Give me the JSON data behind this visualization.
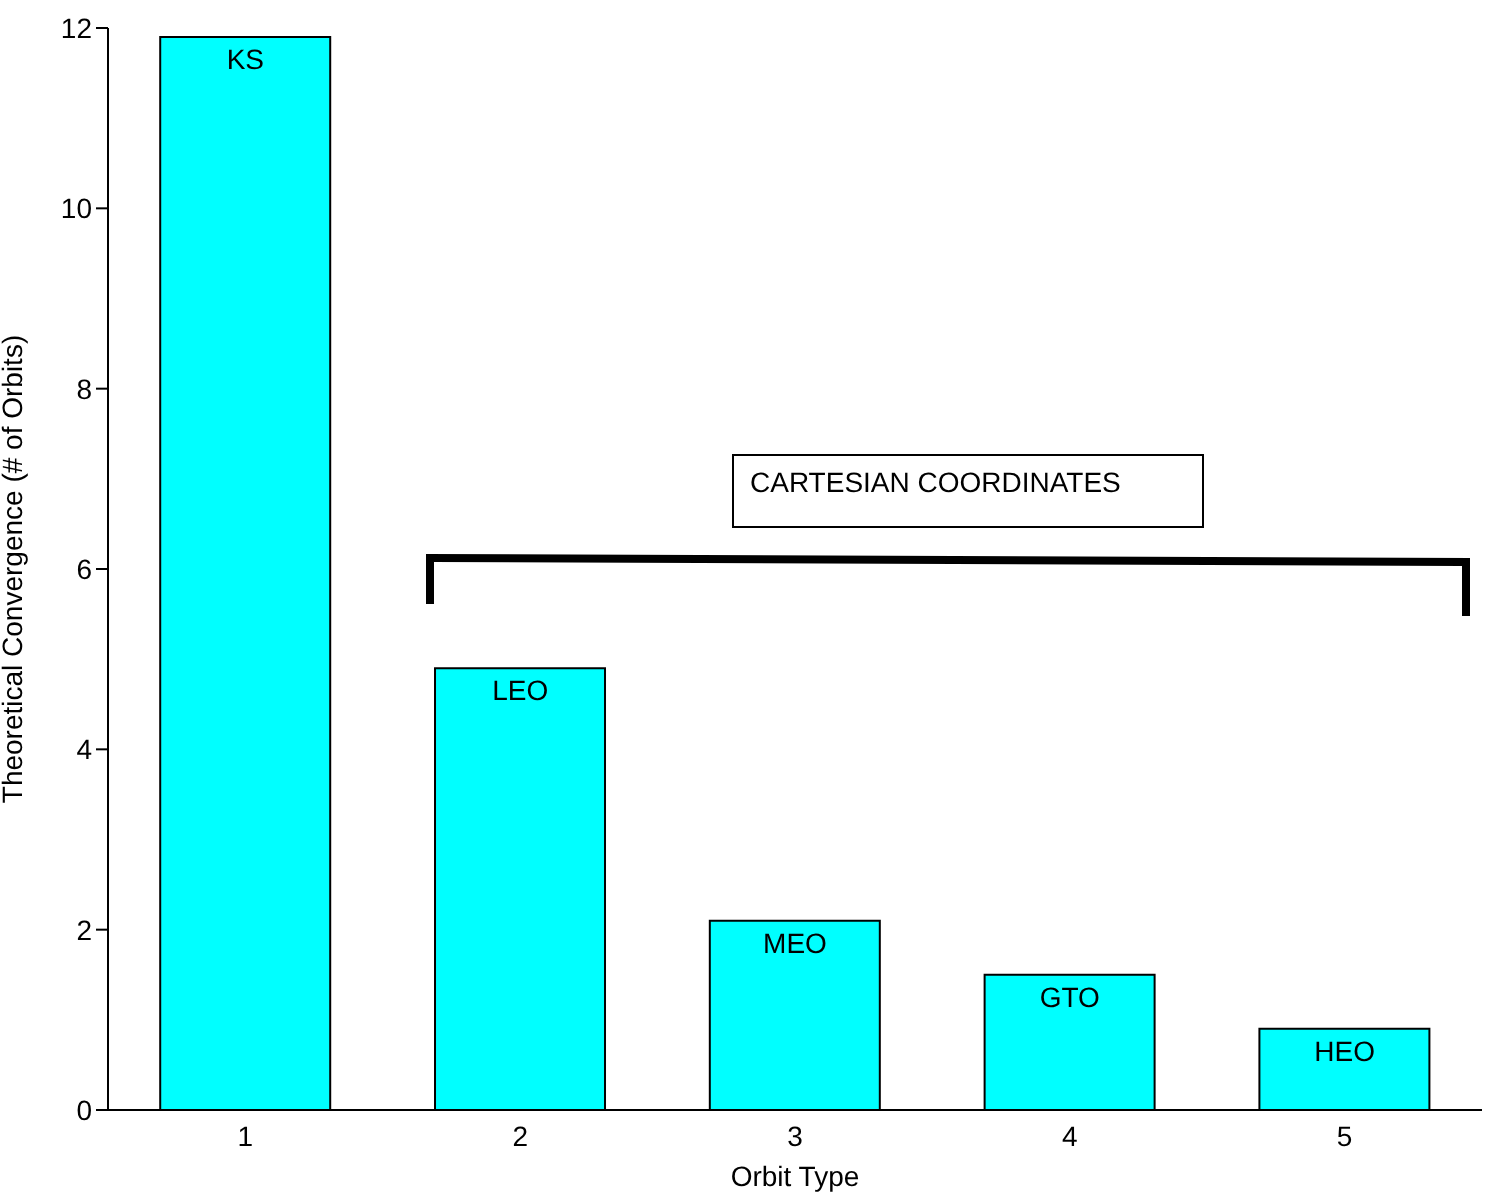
{
  "chart_data": {
    "type": "bar",
    "xlabel": "Orbit Type",
    "ylabel": "Theoretical Convergence (# of Orbits)",
    "categories": [
      "1",
      "2",
      "3",
      "4",
      "5"
    ],
    "values": [
      11.9,
      4.9,
      2.1,
      1.5,
      0.9
    ],
    "color": "#00ffff",
    "ylim": [
      0,
      12
    ],
    "yticks": [
      0,
      2,
      4,
      6,
      8,
      10,
      12
    ],
    "annotations": [
      {
        "text": "KS",
        "x": "1",
        "y": 11.9
      },
      {
        "text": "LEO",
        "x": "2",
        "y": 4.9
      },
      {
        "text": "MEO",
        "x": "3",
        "y": 2.1
      },
      {
        "text": "GTO",
        "x": "4",
        "y": 1.5
      },
      {
        "text": "HEO",
        "x": "5",
        "y": 0.9
      },
      "CARTESIAN COORDINATES"
    ]
  }
}
